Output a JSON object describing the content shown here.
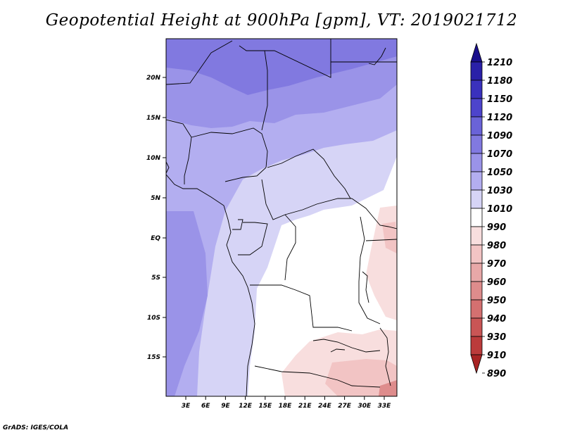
{
  "title": "Geopotential Height at 900hPa [gpm], VT: 2019021712",
  "footer": "GrADS: IGES/COLA",
  "map": {
    "lat_labels": [
      "20N",
      "15N",
      "10N",
      "5N",
      "EQ",
      "5S",
      "10S",
      "15S"
    ],
    "lon_labels": [
      "3E",
      "6E",
      "9E",
      "12E",
      "15E",
      "18E",
      "21E",
      "24E",
      "27E",
      "30E",
      "33E"
    ]
  },
  "colorbar": {
    "levels": [
      "1210",
      "1180",
      "1150",
      "1120",
      "1090",
      "1070",
      "1050",
      "1030",
      "1010",
      "990",
      "980",
      "970",
      "960",
      "950",
      "940",
      "930",
      "910",
      "890"
    ],
    "colors": [
      "#1a0f8c",
      "#2a20a8",
      "#3a31bd",
      "#4d44cc",
      "#6a63d8",
      "#8179e0",
      "#9a93e8",
      "#b3aef0",
      "#d6d4f6",
      "#ffffff",
      "#f8dede",
      "#f2c4c4",
      "#e8a8a8",
      "#de8c8c",
      "#d47070",
      "#c95555",
      "#bb3b3b",
      "#a82424"
    ]
  }
}
